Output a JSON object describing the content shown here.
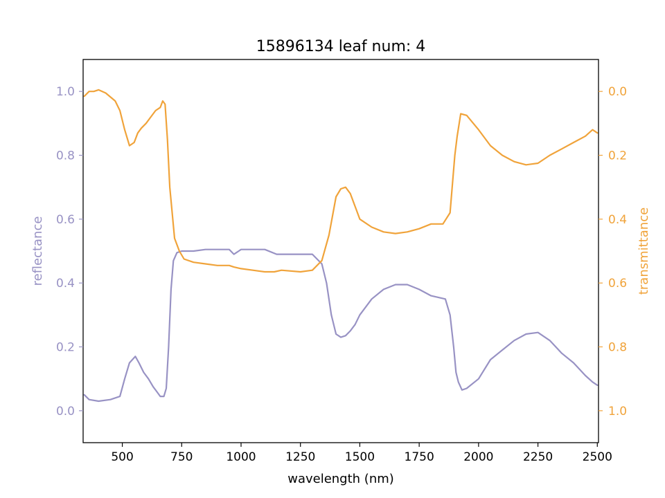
{
  "chart_data": {
    "type": "line",
    "title": "15896134 leaf num: 4",
    "xlabel": "wavelength (nm)",
    "ylabel_left": "reflectance",
    "ylabel_right": "transmittance",
    "xlim": [
      335,
      2505
    ],
    "ylim_left": [
      -0.1,
      1.1
    ],
    "ylim_right": [
      1.1,
      -0.1
    ],
    "x_ticks": [
      500,
      750,
      1000,
      1250,
      1500,
      1750,
      2000,
      2250,
      2500
    ],
    "x_tick_labels": [
      "500",
      "750",
      "1000",
      "1250",
      "1500",
      "1750",
      "2000",
      "2250",
      "2500"
    ],
    "y_left_ticks": [
      0.0,
      0.2,
      0.4,
      0.6,
      0.8,
      1.0
    ],
    "y_left_tick_labels": [
      "0.0",
      "0.2",
      "0.4",
      "0.6",
      "0.8",
      "1.0"
    ],
    "y_right_ticks": [
      0.0,
      0.2,
      0.4,
      0.6,
      0.8,
      1.0
    ],
    "y_right_tick_labels": [
      "0.0",
      "0.2",
      "0.4",
      "0.6",
      "0.8",
      "1.0"
    ],
    "grid": false,
    "colors": {
      "reflectance": "#9892c4",
      "transmittance": "#f0a33a"
    },
    "series": [
      {
        "axis": "left",
        "color": "#9892c4",
        "x": [
          340,
          360,
          400,
          450,
          490,
          510,
          530,
          555,
          570,
          590,
          610,
          630,
          645,
          660,
          675,
          685,
          695,
          705,
          715,
          730,
          750,
          800,
          850,
          900,
          950,
          970,
          980,
          990,
          1000,
          1050,
          1100,
          1150,
          1200,
          1250,
          1300,
          1340,
          1360,
          1380,
          1400,
          1420,
          1440,
          1460,
          1480,
          1500,
          1550,
          1600,
          1650,
          1700,
          1750,
          1800,
          1830,
          1860,
          1880,
          1895,
          1905,
          1915,
          1930,
          1950,
          2000,
          2050,
          2100,
          2150,
          2200,
          2250,
          2300,
          2350,
          2400,
          2450,
          2480,
          2500
        ],
        "y": [
          0.05,
          0.035,
          0.03,
          0.035,
          0.045,
          0.1,
          0.15,
          0.17,
          0.15,
          0.12,
          0.1,
          0.075,
          0.06,
          0.045,
          0.045,
          0.07,
          0.2,
          0.38,
          0.47,
          0.495,
          0.5,
          0.5,
          0.505,
          0.505,
          0.505,
          0.49,
          0.495,
          0.5,
          0.505,
          0.505,
          0.505,
          0.49,
          0.49,
          0.49,
          0.49,
          0.46,
          0.4,
          0.3,
          0.24,
          0.23,
          0.235,
          0.25,
          0.27,
          0.3,
          0.35,
          0.38,
          0.395,
          0.395,
          0.38,
          0.36,
          0.355,
          0.35,
          0.3,
          0.2,
          0.12,
          0.09,
          0.065,
          0.07,
          0.1,
          0.16,
          0.19,
          0.22,
          0.24,
          0.245,
          0.22,
          0.18,
          0.15,
          0.11,
          0.09,
          0.08
        ]
      },
      {
        "axis": "right",
        "color": "#f0a33a",
        "x": [
          340,
          360,
          380,
          400,
          430,
          470,
          490,
          510,
          530,
          550,
          565,
          580,
          600,
          620,
          640,
          660,
          670,
          680,
          690,
          700,
          720,
          740,
          760,
          800,
          850,
          900,
          950,
          970,
          1000,
          1050,
          1100,
          1140,
          1170,
          1250,
          1300,
          1340,
          1370,
          1400,
          1420,
          1440,
          1460,
          1480,
          1500,
          1550,
          1600,
          1650,
          1700,
          1750,
          1800,
          1850,
          1880,
          1900,
          1910,
          1925,
          1950,
          2000,
          2050,
          2100,
          2150,
          2200,
          2250,
          2300,
          2350,
          2400,
          2450,
          2480,
          2500
        ],
        "y": [
          0.015,
          0.0,
          0.0,
          -0.005,
          0.005,
          0.03,
          0.06,
          0.12,
          0.17,
          0.16,
          0.13,
          0.115,
          0.1,
          0.08,
          0.06,
          0.05,
          0.03,
          0.04,
          0.15,
          0.3,
          0.46,
          0.5,
          0.525,
          0.535,
          0.54,
          0.545,
          0.545,
          0.55,
          0.555,
          0.56,
          0.565,
          0.565,
          0.56,
          0.565,
          0.56,
          0.53,
          0.45,
          0.33,
          0.305,
          0.3,
          0.32,
          0.36,
          0.4,
          0.425,
          0.44,
          0.445,
          0.44,
          0.43,
          0.415,
          0.415,
          0.38,
          0.2,
          0.14,
          0.07,
          0.075,
          0.12,
          0.17,
          0.2,
          0.22,
          0.23,
          0.225,
          0.2,
          0.18,
          0.16,
          0.14,
          0.12,
          0.13
        ]
      }
    ]
  }
}
